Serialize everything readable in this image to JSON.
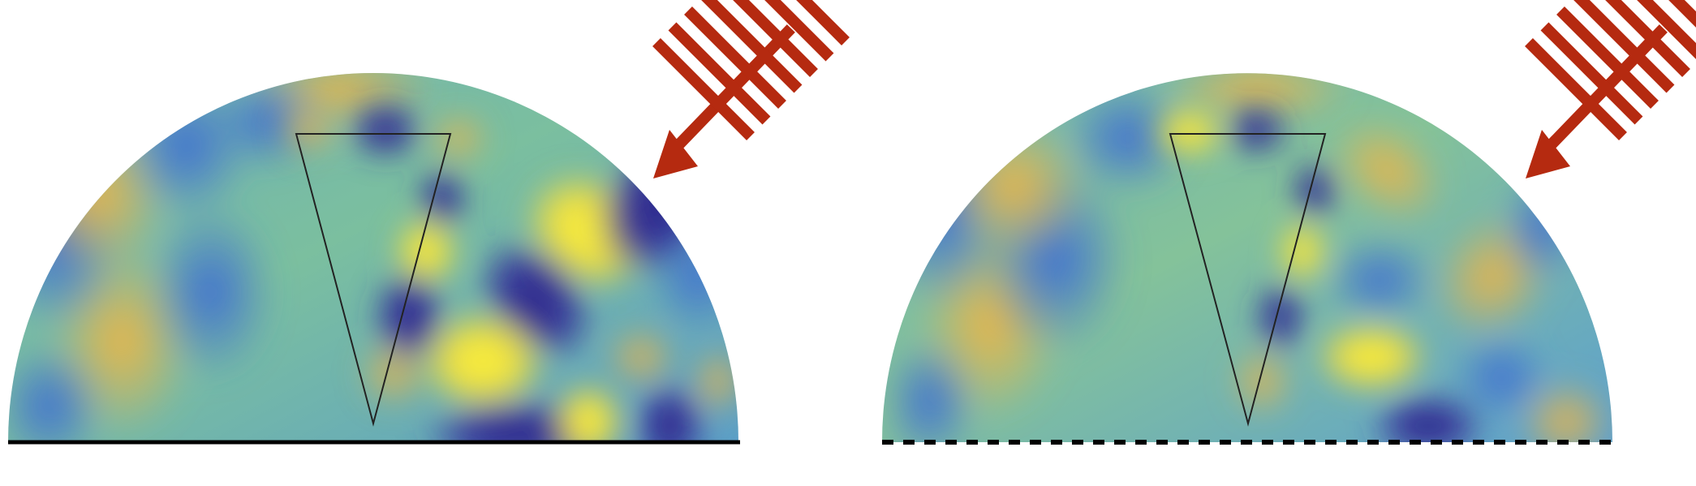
{
  "figure": {
    "panels": [
      {
        "id": "left",
        "boundary": "solid",
        "description_colors": [
          "#2f2a86",
          "#3f6fd1",
          "#6fb1b7",
          "#7bbf9f",
          "#e7b44b",
          "#f7f23c"
        ]
      },
      {
        "id": "right",
        "boundary": "dashed",
        "description_colors": [
          "#2f2a86",
          "#3f6fd1",
          "#6fb1b7",
          "#7bbf9f",
          "#e7b44b",
          "#f7f23c"
        ]
      }
    ],
    "incident_wave_color": "#b52a10",
    "scatterer_outline_color": "#222222",
    "boundary_color": "#000000"
  }
}
